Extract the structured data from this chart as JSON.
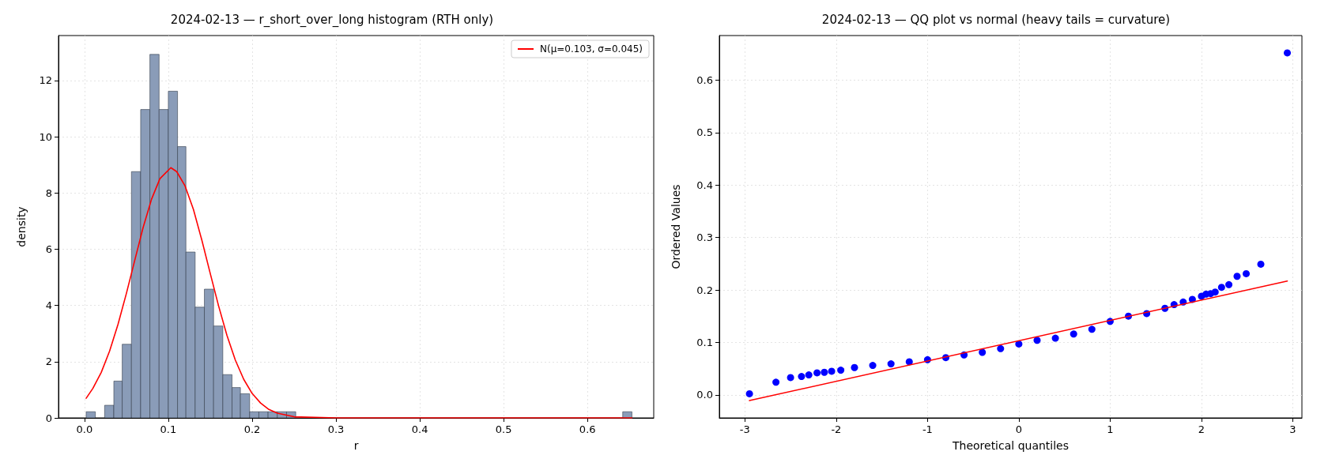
{
  "chart_data": [
    {
      "type": "histogram",
      "title": "2024-02-13 — r_short_over_long histogram (RTH only)",
      "xlabel": "r",
      "ylabel": "density",
      "bins": [
        0.002,
        0.013,
        0.024,
        0.035,
        0.045,
        0.056,
        0.067,
        0.078,
        0.089,
        0.1,
        0.111,
        0.121,
        0.132,
        0.143,
        0.154,
        0.165,
        0.176,
        0.186,
        0.197,
        0.208,
        0.219,
        0.23,
        0.241,
        0.252,
        0.642,
        0.653
      ],
      "series": [
        {
          "color": "#8a9cb8",
          "values": [
            0.22,
            0,
            0.45,
            1.31,
            2.62,
            8.76,
            10.97,
            12.93,
            10.97,
            11.62,
            9.65,
            5.9,
            3.94,
            4.58,
            3.27,
            1.54,
            1.08,
            0.86,
            0.22,
            0.22,
            0.22,
            0.22,
            0.22,
            0,
            0.22
          ]
        },
        {
          "type": "line",
          "name": "N(μ=0.103, σ=0.045)",
          "color": "#ff0000",
          "x": [
            0.002,
            0.01,
            0.02,
            0.03,
            0.04,
            0.05,
            0.06,
            0.07,
            0.08,
            0.09,
            0.103,
            0.11,
            0.12,
            0.13,
            0.14,
            0.15,
            0.16,
            0.17,
            0.18,
            0.19,
            0.2,
            0.21,
            0.22,
            0.23,
            0.25,
            0.3,
            0.653
          ],
          "values": [
            0.7,
            1.05,
            1.62,
            2.38,
            3.33,
            4.43,
            5.61,
            6.78,
            7.78,
            8.51,
            8.9,
            8.76,
            8.25,
            7.41,
            6.32,
            5.14,
            3.98,
            2.93,
            2.05,
            1.37,
            0.87,
            0.53,
            0.3,
            0.17,
            0.04,
            0,
            0
          ]
        }
      ],
      "xlim": [
        -0.031,
        0.679
      ],
      "xticks": [
        {
          "value": 0,
          "label": "0.0"
        },
        {
          "value": 0.1,
          "label": "0.1"
        },
        {
          "value": 0.2,
          "label": "0.2"
        },
        {
          "value": 0.3,
          "label": "0.3"
        },
        {
          "value": 0.4,
          "label": "0.4"
        },
        {
          "value": 0.5,
          "label": "0.5"
        },
        {
          "value": 0.6,
          "label": "0.6"
        }
      ],
      "ylim": [
        0,
        13.6
      ],
      "yticks": [
        0,
        2,
        4,
        6,
        8,
        10,
        12
      ],
      "grid": true,
      "legend": "top right"
    },
    {
      "type": "scatter",
      "title": "2024-02-13 — QQ plot vs normal (heavy tails = curvature)",
      "xlabel": "Theoretical quantiles",
      "ylabel": "Ordered Values",
      "series": [
        {
          "color": "#0000ff",
          "marker": "circle",
          "x": [
            -2.95,
            -2.66,
            -2.5,
            -2.38,
            -2.3,
            -2.21,
            -2.13,
            -2.05,
            -1.95,
            -1.8,
            -1.6,
            -1.4,
            -1.2,
            -1.0,
            -0.8,
            -0.6,
            -0.4,
            -0.2,
            0,
            0.2,
            0.4,
            0.6,
            0.8,
            1.0,
            1.2,
            1.4,
            1.6,
            1.7,
            1.8,
            1.9,
            2.0,
            2.05,
            2.1,
            2.15,
            2.22,
            2.3,
            2.39,
            2.49,
            2.65,
            2.94
          ],
          "values": [
            0.002,
            0.024,
            0.033,
            0.035,
            0.038,
            0.042,
            0.043,
            0.045,
            0.047,
            0.052,
            0.056,
            0.059,
            0.063,
            0.067,
            0.071,
            0.076,
            0.081,
            0.088,
            0.097,
            0.104,
            0.108,
            0.116,
            0.125,
            0.14,
            0.15,
            0.155,
            0.165,
            0.172,
            0.177,
            0.182,
            0.188,
            0.192,
            0.193,
            0.196,
            0.205,
            0.21,
            0.226,
            0.231,
            0.249,
            0.652
          ]
        },
        {
          "type": "line",
          "color": "#ff0000",
          "x": [
            -2.95,
            2.94
          ],
          "values": [
            -0.011,
            0.217
          ]
        }
      ],
      "xlim": [
        -3.28,
        3.1
      ],
      "xticks": [
        -3,
        -2,
        -1,
        0,
        1,
        2,
        3
      ],
      "ylim": [
        -0.044,
        0.685
      ],
      "yticks": [
        {
          "value": 0,
          "label": "0.0"
        },
        {
          "value": 0.1,
          "label": "0.1"
        },
        {
          "value": 0.2,
          "label": "0.2"
        },
        {
          "value": 0.3,
          "label": "0.3"
        },
        {
          "value": 0.4,
          "label": "0.4"
        },
        {
          "value": 0.5,
          "label": "0.5"
        },
        {
          "value": 0.6,
          "label": "0.6"
        }
      ],
      "grid": true
    }
  ]
}
